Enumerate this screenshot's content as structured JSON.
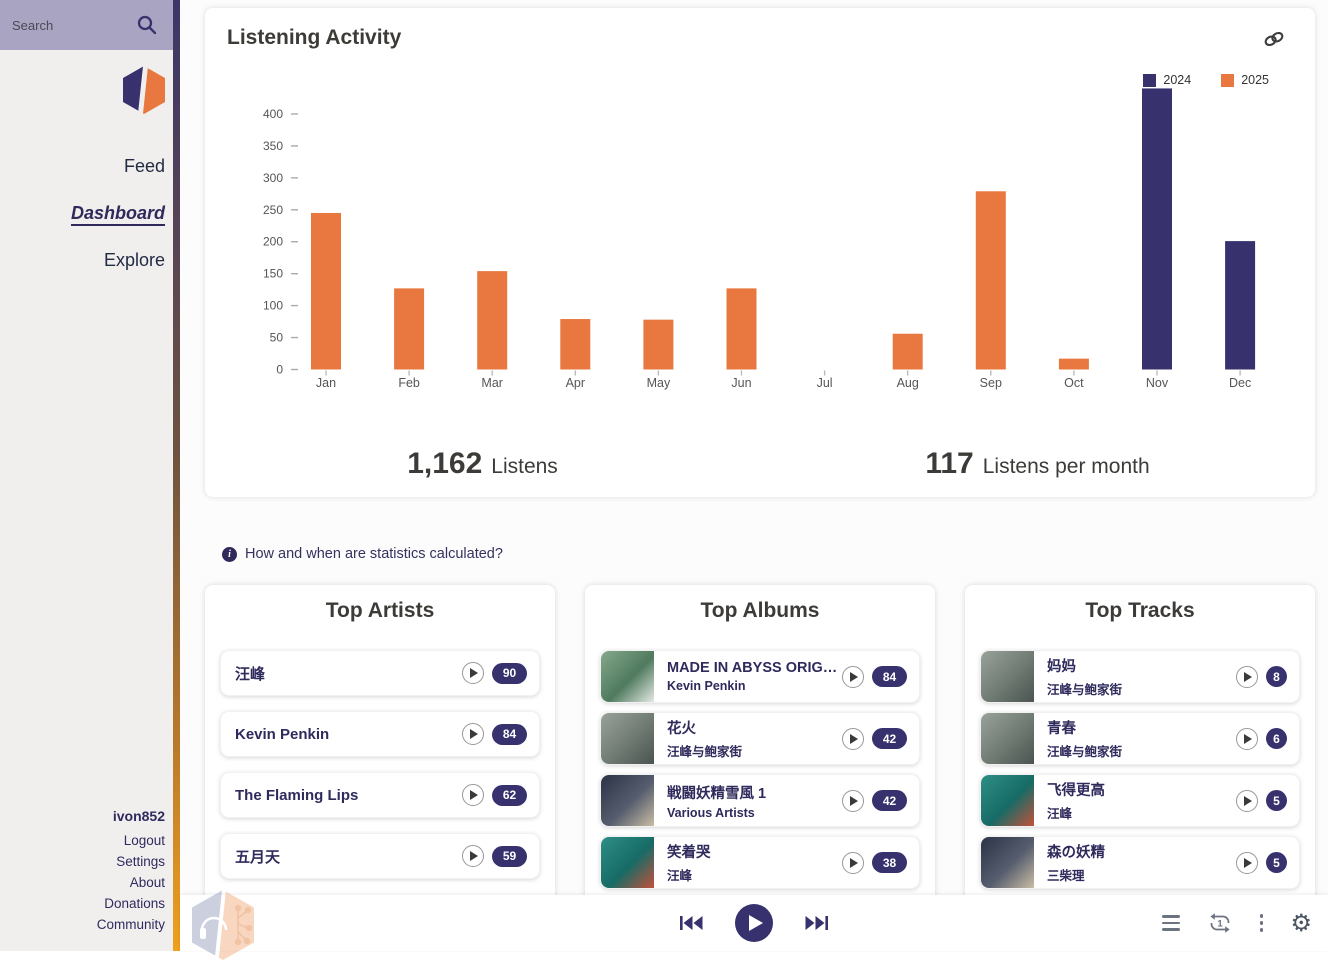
{
  "sidebar": {
    "search": {
      "placeholder": "Search"
    },
    "nav": [
      {
        "label": "Feed",
        "active": false
      },
      {
        "label": "Dashboard",
        "active": true
      },
      {
        "label": "Explore",
        "active": false
      }
    ],
    "username": "ivon852",
    "links": [
      "Logout",
      "Settings",
      "About",
      "Donations",
      "Community"
    ]
  },
  "listening_activity": {
    "title": "Listening Activity",
    "stats": [
      {
        "value": "1,162",
        "label": "Listens"
      },
      {
        "value": "117",
        "label": "Listens per month"
      }
    ]
  },
  "chart_data": {
    "type": "bar",
    "title": "Listening Activity",
    "categories": [
      "Jan",
      "Feb",
      "Mar",
      "Apr",
      "May",
      "Jun",
      "Jul",
      "Aug",
      "Sep",
      "Oct",
      "Nov",
      "Dec"
    ],
    "series": [
      {
        "name": "2024",
        "color": "#37316E",
        "values": [
          0,
          0,
          0,
          0,
          0,
          0,
          0,
          0,
          0,
          0,
          440,
          201
        ]
      },
      {
        "name": "2025",
        "color": "#E8783F",
        "values": [
          245,
          127,
          154,
          79,
          78,
          127,
          0,
          56,
          279,
          17,
          0,
          0
        ]
      }
    ],
    "xlabel": "",
    "ylabel": "",
    "ylim": [
      0,
      450
    ],
    "yticks": [
      0,
      50,
      100,
      150,
      200,
      250,
      300,
      350,
      400
    ],
    "grid": false,
    "legend_position": "top-right"
  },
  "info_line": {
    "text": "How and when are statistics calculated?"
  },
  "sections": [
    {
      "title": "Top Artists",
      "items": [
        {
          "title": "汪峰",
          "count": "90"
        },
        {
          "title": "Kevin Penkin",
          "count": "84"
        },
        {
          "title": "The Flaming Lips",
          "count": "62"
        },
        {
          "title": "五月天",
          "count": "59"
        }
      ]
    },
    {
      "title": "Top Albums",
      "items": [
        {
          "title": "MADE IN ABYSS ORIGINA...",
          "subtitle": "Kevin Penkin",
          "count": "84",
          "art_colors": [
            "#86A98C",
            "#4F7A5E",
            "#E8ECE6"
          ]
        },
        {
          "title": "花火",
          "subtitle": "汪峰与鲍家街",
          "count": "42",
          "art_colors": [
            "#9AA39B",
            "#6F7A72",
            "#4A5350"
          ]
        },
        {
          "title": "戦闘妖精雪風 1",
          "subtitle": "Various Artists",
          "count": "42",
          "art_colors": [
            "#2B3246",
            "#555D6E",
            "#CDBFA5"
          ]
        },
        {
          "title": "笑着哭",
          "subtitle": "汪峰",
          "count": "38",
          "art_colors": [
            "#2E8F86",
            "#176B66",
            "#C7503A"
          ]
        }
      ]
    },
    {
      "title": "Top Tracks",
      "items": [
        {
          "title": "妈妈",
          "subtitle": "汪峰与鲍家街",
          "count": "8",
          "art_colors": [
            "#9AA39B",
            "#6F7A72",
            "#4A5350"
          ]
        },
        {
          "title": "青春",
          "subtitle": "汪峰与鲍家街",
          "count": "6",
          "art_colors": [
            "#9AA39B",
            "#6F7A72",
            "#4A5350"
          ]
        },
        {
          "title": "飞得更高",
          "subtitle": "汪峰",
          "count": "5",
          "art_colors": [
            "#2E8F86",
            "#176B66",
            "#C7503A"
          ]
        },
        {
          "title": "森の妖精",
          "subtitle": "三柴理",
          "count": "5",
          "art_colors": [
            "#2B3246",
            "#555D6E",
            "#CDBFA5"
          ]
        }
      ]
    }
  ],
  "player": {
    "icons": [
      "skip-back",
      "play",
      "skip-forward",
      "queue",
      "repeat-one",
      "more-menu",
      "settings-gear"
    ],
    "gear_glyph": "⚙"
  },
  "colors": {
    "accent_purple": "#37316E",
    "accent_orange": "#E8783F",
    "sidebar_bg": "#F1EFEE",
    "search_bg": "#A9A4C1",
    "item_text": "#2E2A5C",
    "heading_text": "#3D3B38"
  }
}
